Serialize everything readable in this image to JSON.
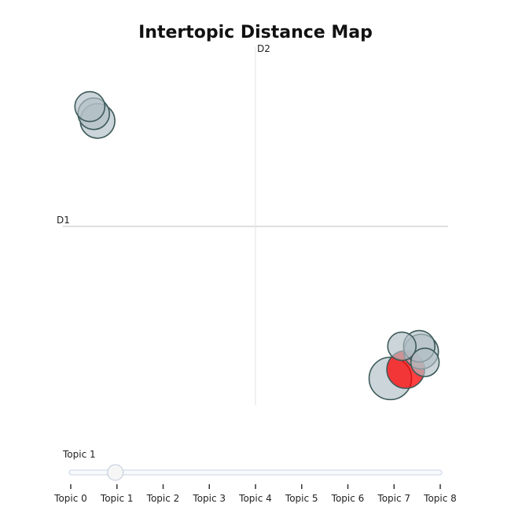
{
  "chart_data": {
    "type": "scatter",
    "title": "Intertopic Distance Map",
    "xlabel": "D1",
    "ylabel": "D2",
    "xlim": [
      -10,
      10
    ],
    "ylim": [
      -10,
      10
    ],
    "grid": false,
    "points": [
      {
        "topic": "Topic 0",
        "x": 7.0,
        "y": -8.5,
        "size": 27,
        "highlighted": false
      },
      {
        "topic": "Topic 1",
        "x": 7.8,
        "y": -8.0,
        "size": 24,
        "highlighted": true
      },
      {
        "topic": "Topic 2",
        "x": 8.6,
        "y": -7.0,
        "size": 22,
        "highlighted": false
      },
      {
        "topic": "Topic 3",
        "x": 8.5,
        "y": -6.7,
        "size": 20,
        "highlighted": false
      },
      {
        "topic": "Topic 4",
        "x": 7.6,
        "y": -6.7,
        "size": 18,
        "highlighted": false
      },
      {
        "topic": "Topic 5",
        "x": 8.8,
        "y": -7.6,
        "size": 18,
        "highlighted": false
      },
      {
        "topic": "Topic 6",
        "x": -8.2,
        "y": 5.9,
        "size": 22,
        "highlighted": false
      },
      {
        "topic": "Topic 7",
        "x": -8.4,
        "y": 6.3,
        "size": 20,
        "highlighted": false
      },
      {
        "topic": "Topic 8",
        "x": -8.6,
        "y": 6.7,
        "size": 19,
        "highlighted": false
      }
    ],
    "colors": {
      "bubble_fill": "#b0bec5",
      "bubble_stroke": "#3d5a5a",
      "highlight_fill": "#ff0000",
      "axis_line": "#cccccc",
      "slider_track": "#c8d4e3"
    }
  },
  "slider": {
    "current_label": "Topic 1",
    "selected_index": 1,
    "steps": [
      "Topic 0",
      "Topic 1",
      "Topic 2",
      "Topic 3",
      "Topic 4",
      "Topic 5",
      "Topic 6",
      "Topic 7",
      "Topic 8"
    ]
  }
}
